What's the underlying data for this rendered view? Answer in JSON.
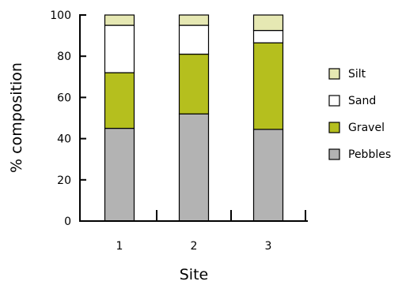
{
  "chart_data": {
    "type": "bar",
    "stacked": true,
    "categories": [
      "1",
      "2",
      "3"
    ],
    "series": [
      {
        "name": "Pebbles",
        "color": "#b3b3b3",
        "values": [
          45,
          52,
          44.5
        ]
      },
      {
        "name": "Gravel",
        "color": "#b5bf1e",
        "values": [
          27,
          29,
          42
        ]
      },
      {
        "name": "Sand",
        "color": "#ffffff",
        "values": [
          23,
          14,
          6
        ]
      },
      {
        "name": "Silt",
        "color": "#e6e8b3",
        "values": [
          5,
          5,
          7.5
        ]
      }
    ],
    "xlabel": "Site",
    "ylabel": "% composition",
    "ylim": [
      0,
      100
    ],
    "yticks": [
      0,
      20,
      40,
      60,
      80,
      100
    ],
    "legend_order": [
      "Silt",
      "Sand",
      "Gravel",
      "Pebbles"
    ],
    "legend_position": "right",
    "grid": false
  }
}
